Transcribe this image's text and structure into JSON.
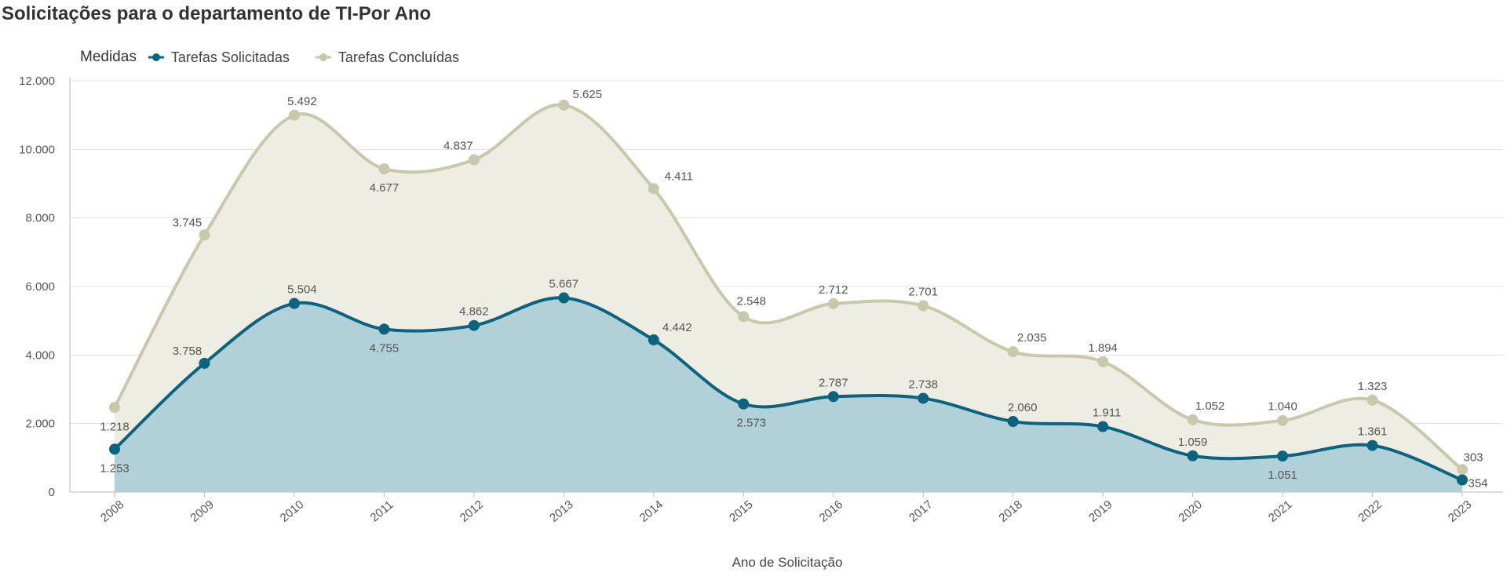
{
  "title": "Solicitações para o departamento de TI-Por Ano",
  "legend": {
    "title": "Medidas",
    "items": [
      {
        "label": "Tarefas Solicitadas",
        "color": "#0b6380"
      },
      {
        "label": "Tarefas Concluídas",
        "color": "#c9c8aa"
      }
    ]
  },
  "chart_data": {
    "type": "area",
    "stacked": true,
    "x": [
      "2008",
      "2009",
      "2010",
      "2011",
      "2012",
      "2013",
      "2014",
      "2015",
      "2016",
      "2017",
      "2018",
      "2019",
      "2020",
      "2021",
      "2022",
      "2023"
    ],
    "series": [
      {
        "name": "Tarefas Solicitadas",
        "color": "#0b6380",
        "fill": "#b2d0d8",
        "values": [
          1253,
          3758,
          5504,
          4755,
          4862,
          5667,
          4442,
          2573,
          2787,
          2738,
          2060,
          1911,
          1059,
          1051,
          1361,
          354
        ]
      },
      {
        "name": "Tarefas Concluídas",
        "color": "#c9c8aa",
        "fill": "#eeede4",
        "values": [
          1218,
          3745,
          5492,
          4677,
          4837,
          5625,
          4411,
          2548,
          2712,
          2701,
          2035,
          1894,
          1052,
          1040,
          1323,
          303
        ]
      }
    ],
    "xlabel": "Ano de Solicitação",
    "ylabel": "",
    "ylim": [
      0,
      12000
    ],
    "yticks": [
      "0",
      "2.000",
      "4.000",
      "6.000",
      "8.000",
      "10.000",
      "12.000"
    ],
    "ytick_values": [
      0,
      2000,
      4000,
      6000,
      8000,
      10000,
      12000
    ],
    "value_labels_solicitadas": [
      "1.253",
      "3.758",
      "5.504",
      "4.755",
      "4.862",
      "5.667",
      "4.442",
      "2.573",
      "2.787",
      "2.738",
      "2.060",
      "1.911",
      "1.059",
      "1.051",
      "1.361",
      "354"
    ],
    "value_labels_concluidas": [
      "1.218",
      "3.745",
      "5.492",
      "4.677",
      "4.837",
      "5.625",
      "4.411",
      "2.548",
      "2.712",
      "2.701",
      "2.035",
      "1.894",
      "1.052",
      "1.040",
      "1.323",
      "303"
    ],
    "grid": true,
    "legend_position": "top-left"
  }
}
